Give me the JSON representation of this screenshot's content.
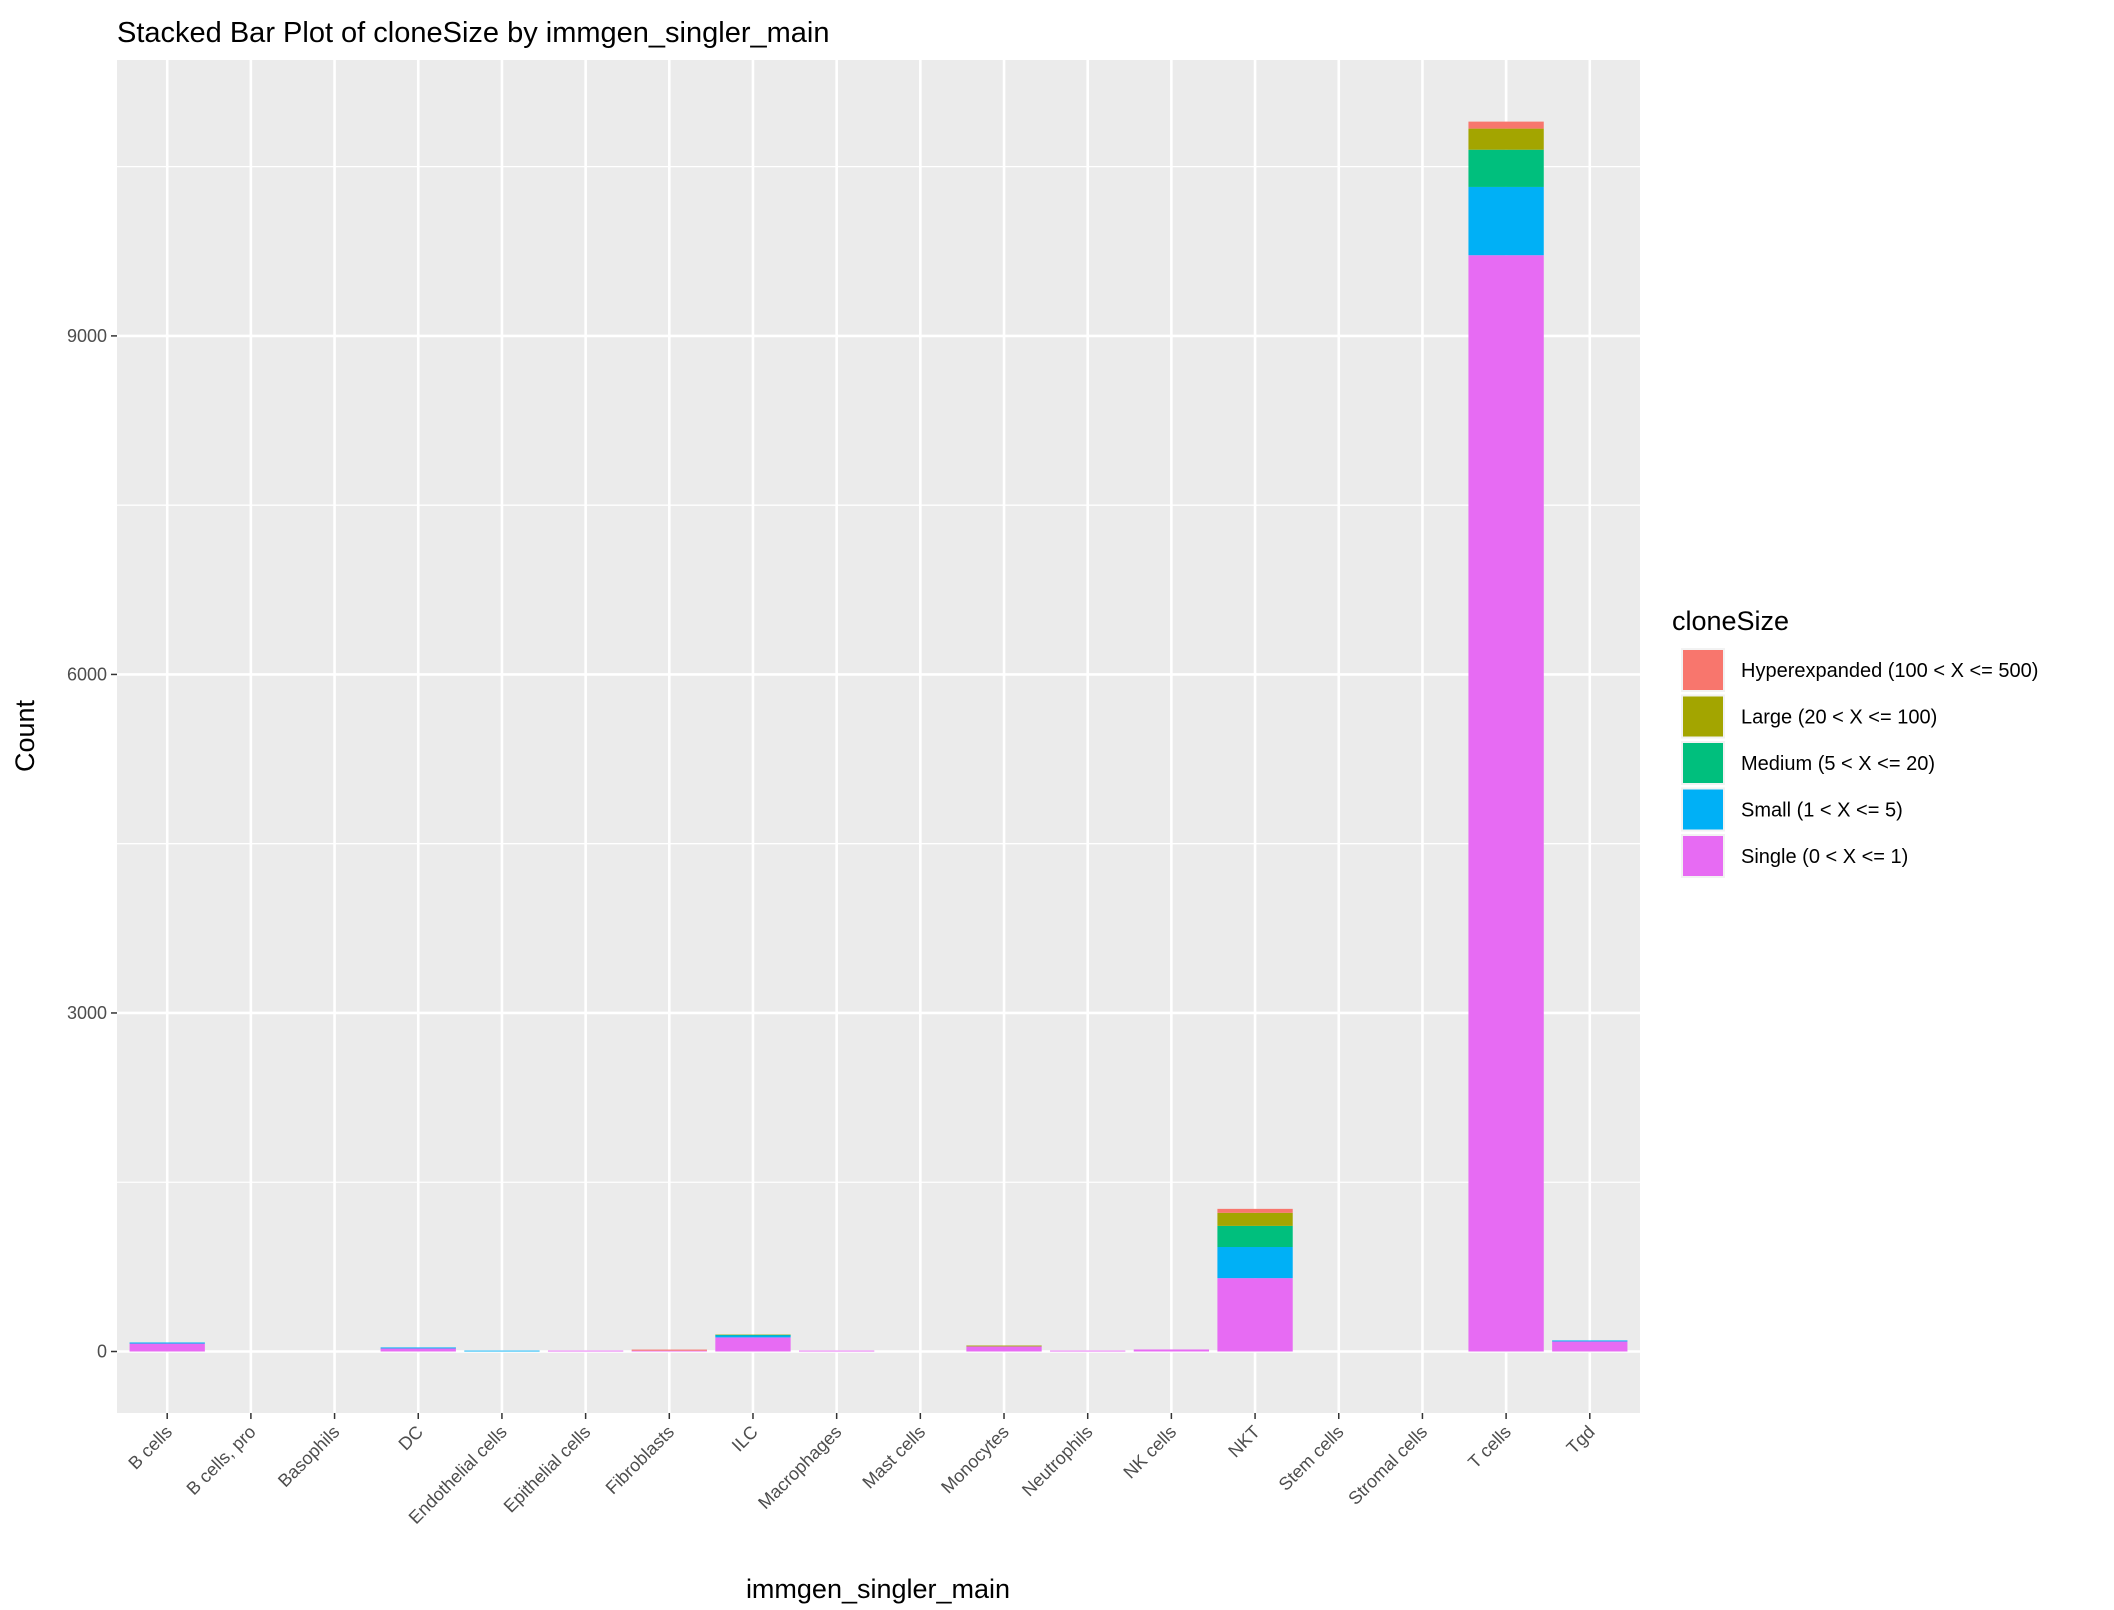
{
  "chart_data": {
    "type": "bar",
    "stacked": true,
    "title": "Stacked Bar Plot of cloneSize by immgen_singler_main",
    "xlabel": "immgen_singler_main",
    "ylabel": "Count",
    "ylim": [
      -545,
      11445
    ],
    "yticks": [
      0,
      3000,
      6000,
      9000
    ],
    "grid": true,
    "legend_position": "right",
    "legend_title": "cloneSize",
    "categories": [
      "B cells",
      "B cells, pro",
      "Basophils",
      "DC",
      "Endothelial cells",
      "Epithelial cells",
      "Fibroblasts",
      "ILC",
      "Macrophages",
      "Mast cells",
      "Monocytes",
      "Neutrophils",
      "NK cells",
      "NKT",
      "Stem cells",
      "Stromal cells",
      "T cells",
      "Tgd"
    ],
    "series": [
      {
        "name": "Single (0 < X <= 1)",
        "color": "#E76BF3",
        "values": [
          70,
          0,
          0,
          27,
          0,
          8,
          7,
          125,
          8,
          0,
          45,
          8,
          18,
          650,
          0,
          0,
          9715,
          89
        ]
      },
      {
        "name": "Small (1 < X <= 5)",
        "color": "#00B0F6",
        "values": [
          10,
          0,
          0,
          9,
          8,
          0,
          0,
          17,
          0,
          0,
          0,
          0,
          0,
          276,
          0,
          0,
          605,
          9
        ]
      },
      {
        "name": "Medium (5 < X <= 20)",
        "color": "#00BF7D",
        "values": [
          0,
          0,
          0,
          0,
          0,
          0,
          0,
          6,
          0,
          0,
          0,
          0,
          0,
          187,
          0,
          0,
          330,
          0
        ]
      },
      {
        "name": "Large (20 < X <= 100)",
        "color": "#A3A500",
        "values": [
          0,
          0,
          0,
          0,
          0,
          0,
          0,
          3,
          0,
          0,
          8,
          0,
          0,
          116,
          0,
          0,
          187,
          0
        ]
      },
      {
        "name": "Hyperexpanded (100 < X <= 500)",
        "color": "#F8766D",
        "values": [
          0,
          0,
          0,
          0,
          0,
          0,
          10,
          0,
          0,
          0,
          0,
          0,
          0,
          35,
          0,
          0,
          62,
          0
        ]
      }
    ]
  }
}
